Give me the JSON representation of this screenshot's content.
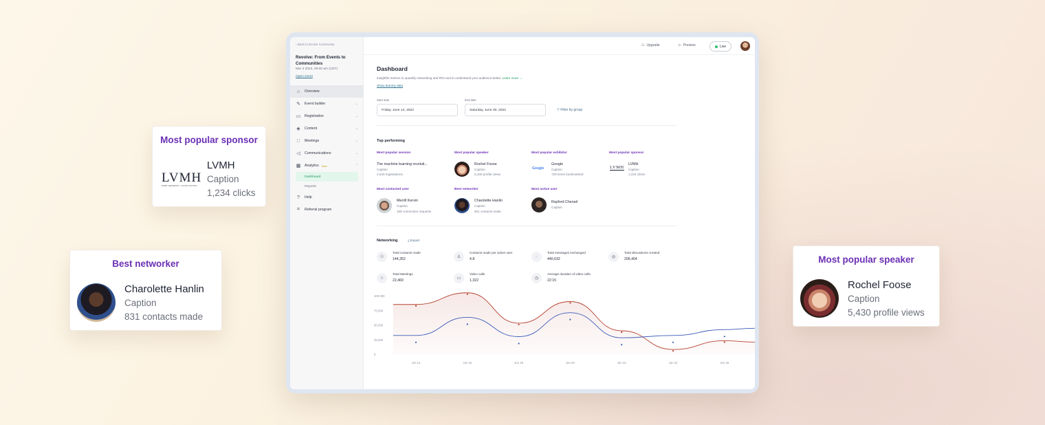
{
  "sidebar": {
    "back": "Back to Evolve Community",
    "event_title": "Revolve: From Events to Communities",
    "event_date": "Mar 3 2022, 09:00 am (CET)",
    "open_event": "Open event",
    "items": [
      {
        "label": "Overview",
        "icon": "home-icon"
      },
      {
        "label": "Event builder",
        "icon": "tools-icon"
      },
      {
        "label": "Registration",
        "icon": "ticket-icon"
      },
      {
        "label": "Content",
        "icon": "layers-icon"
      },
      {
        "label": "Meetings",
        "icon": "meetings-icon"
      },
      {
        "label": "Communications",
        "icon": "megaphone-icon"
      },
      {
        "label": "Analytics",
        "icon": "chart-icon",
        "badge": "New"
      },
      {
        "label": "Help",
        "icon": "help-icon"
      },
      {
        "label": "Referral program",
        "icon": "gift-icon"
      }
    ],
    "sub_items": [
      "Dashboard",
      "Reports"
    ]
  },
  "topbar": {
    "upgrade": "Upgrade",
    "preview": "Preview",
    "live": "Live"
  },
  "dashboard": {
    "title": "Dashboard",
    "description": "Insightful metrics to quantify networking and ROI and to understand your audience better.",
    "learn_more": "Learn more →",
    "show_dummy": "Show dummy data",
    "start_label": "Start date",
    "start_value": "Friday, June 14, 2022",
    "end_label": "End date",
    "end_value": "Saturday, June 30, 2022",
    "filter": "Filter by group"
  },
  "top_performing": {
    "title": "Top performing",
    "session": {
      "label": "Most popular session",
      "name": "The machine learning revoluti...",
      "caption": "Caption",
      "stat": "2,540 registrations"
    },
    "speaker": {
      "label": "Most popular speaker",
      "name": "Rochel Foose",
      "caption": "Caption",
      "stat": "5,430 profile views"
    },
    "exhibitor": {
      "label": "Most popular exhibitor",
      "logo": "Google",
      "name": "Google",
      "caption": "Caption",
      "stat": "720 times bookmarked"
    },
    "sponsor": {
      "label": "Most popular sponsor",
      "logo": "LVMH",
      "name": "LVMH",
      "caption": "Caption",
      "stat": "1,234 clicks"
    },
    "contacted": {
      "label": "Most contacted user",
      "name": "Merrill Kervin",
      "caption": "Caption",
      "stat": "168 connection requests"
    },
    "networker": {
      "label": "Best networker",
      "name": "Charolette Hanlin",
      "caption": "Caption",
      "stat": "831 contacts made"
    },
    "active": {
      "label": "Most active user",
      "name": "Rayford Chenail",
      "caption": "Caption"
    }
  },
  "networking": {
    "title": "Networking",
    "export": "Export",
    "stats": [
      {
        "label": "Total contacts made",
        "value": "144,352",
        "icon": "contacts-icon"
      },
      {
        "label": "Contacts made per active user",
        "value": "4.8",
        "icon": "user-icon"
      },
      {
        "label": "Total messages exchanged",
        "value": "440,632",
        "icon": "message-icon"
      },
      {
        "label": "Total discussions created",
        "value": "206,404",
        "icon": "discussion-icon"
      },
      {
        "label": "Total Meetings",
        "value": "22,460",
        "icon": "meetings-icon"
      },
      {
        "label": "Video calls",
        "value": "1,322",
        "icon": "video-icon"
      },
      {
        "label": "Average duration of video calls",
        "value": "22:15",
        "icon": "clock-icon"
      }
    ]
  },
  "chart_data": {
    "type": "line",
    "x": [
      "Jun 14",
      "Jun 16",
      "Jun 18",
      "Jun 20",
      "Jun 22",
      "Jun 24",
      "Jun 26"
    ],
    "yticks": [
      "100,000",
      "75,000",
      "50,000",
      "25,000",
      "0"
    ],
    "ylim": [
      0,
      100000
    ],
    "series": [
      {
        "color": "#b5412f",
        "values": [
          85000,
          105000,
          53000,
          90000,
          40000,
          8000,
          23000
        ]
      },
      {
        "color": "#3a59b8",
        "values": [
          32000,
          63000,
          30000,
          71000,
          28000,
          32000,
          42000
        ]
      }
    ],
    "grid": false
  },
  "cards": {
    "sponsor": {
      "title": "Most popular sponsor",
      "logo": "LVMH",
      "logo_sub": "MOËT HENNESSY • LOUIS VUITTON",
      "name": "LVMH",
      "caption": "Caption",
      "stat": "1,234 clicks"
    },
    "networker": {
      "title": "Best networker",
      "name": "Charolette Hanlin",
      "caption": "Caption",
      "stat": "831 contacts made"
    },
    "speaker": {
      "title": "Most popular speaker",
      "name": "Rochel Foose",
      "caption": "Caption",
      "stat": "5,430 profile views"
    }
  }
}
